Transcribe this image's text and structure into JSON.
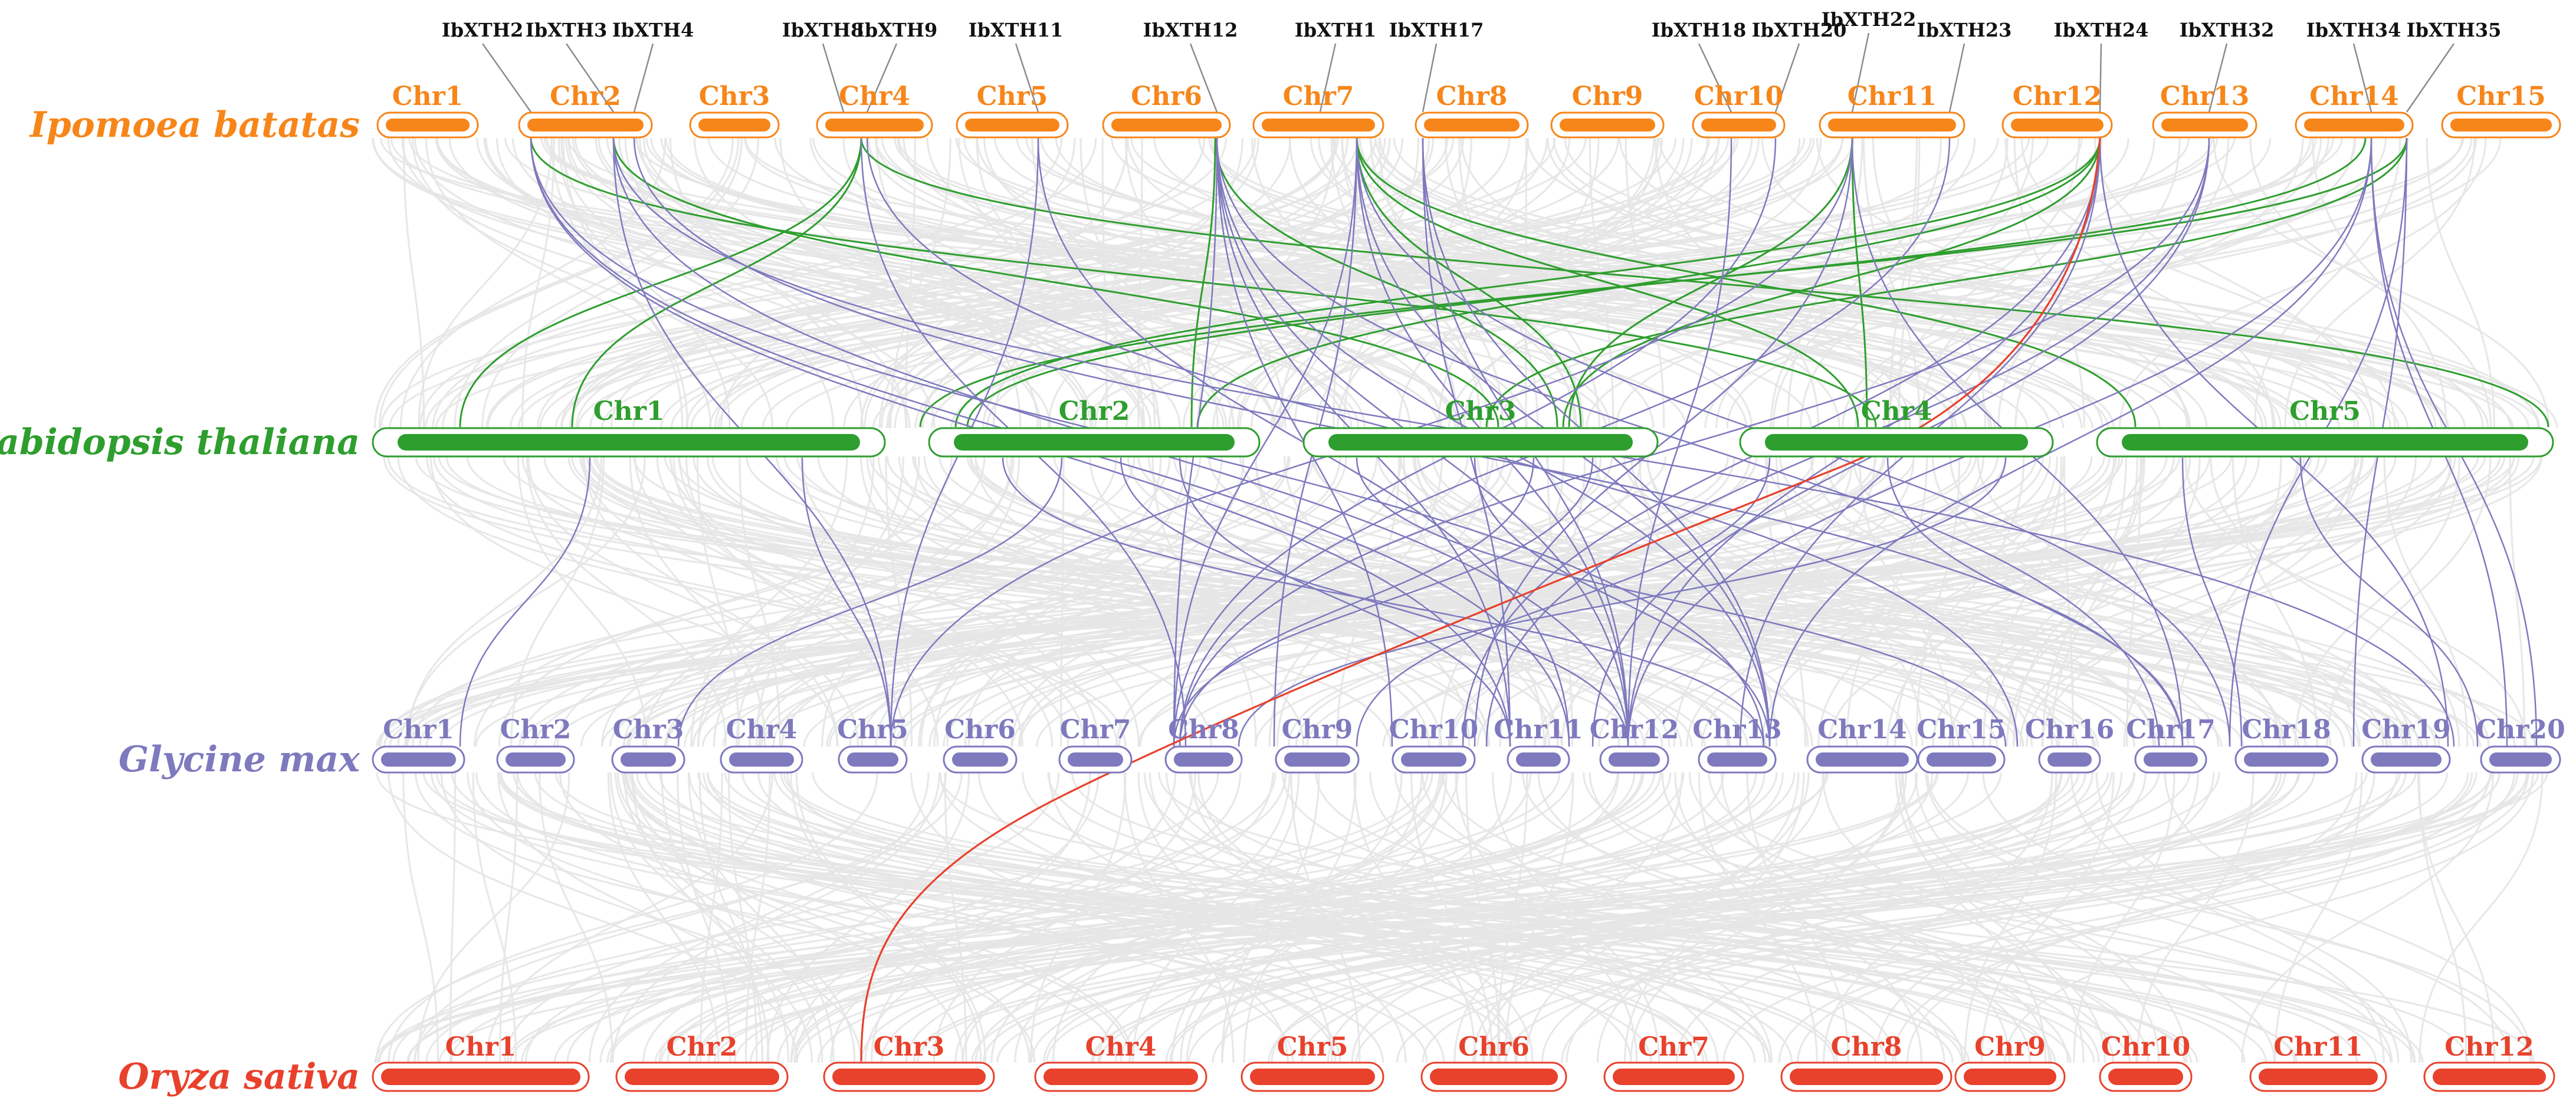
{
  "figure": {
    "colors": {
      "ipomoea": "#F7861A",
      "arabidopsis": "#2E9E2E",
      "glycine": "#7F79BE",
      "oryza": "#E8412C",
      "background_links": "#E6E6E6",
      "gene_leader": "#8C8C8C"
    },
    "tracks": [
      {
        "id": "ib",
        "species": "Ipomoea batatas",
        "chromosomes": [
          "Chr1",
          "Chr2",
          "Chr3",
          "Chr4",
          "Chr5",
          "Chr6",
          "Chr7",
          "Chr8",
          "Chr9",
          "Chr10",
          "Chr11",
          "Chr12",
          "Chr13",
          "Chr14",
          "Chr15"
        ]
      },
      {
        "id": "at",
        "species": "Arabidopsis thaliana",
        "chromosomes": [
          "Chr1",
          "Chr2",
          "Chr3",
          "Chr4",
          "Chr5"
        ]
      },
      {
        "id": "gm",
        "species": "Glycine max",
        "chromosomes": [
          "Chr1",
          "Chr2",
          "Chr3",
          "Chr4",
          "Chr5",
          "Chr6",
          "Chr7",
          "Chr8",
          "Chr9",
          "Chr10",
          "Chr11",
          "Chr12",
          "Chr13",
          "Chr14",
          "Chr15",
          "Chr16",
          "Chr17",
          "Chr18",
          "Chr19",
          "Chr20"
        ]
      },
      {
        "id": "os",
        "species": "Oryza sativa",
        "chromosomes": [
          "Chr1",
          "Chr2",
          "Chr3",
          "Chr4",
          "Chr5",
          "Chr6",
          "Chr7",
          "Chr8",
          "Chr9",
          "Chr10",
          "Chr11",
          "Chr12"
        ]
      }
    ],
    "genes": [
      {
        "name": "IbXTH2",
        "chr": "Chr2"
      },
      {
        "name": "IbXTH3",
        "chr": "Chr2"
      },
      {
        "name": "IbXTH4",
        "chr": "Chr2"
      },
      {
        "name": "IbXTH8",
        "chr": "Chr4"
      },
      {
        "name": "IbXTH9",
        "chr": "Chr4"
      },
      {
        "name": "IbXTH11",
        "chr": "Chr5"
      },
      {
        "name": "IbXTH12",
        "chr": "Chr6"
      },
      {
        "name": "IbXTH1",
        "chr": "Chr7"
      },
      {
        "name": "IbXTH17",
        "chr": "Chr8"
      },
      {
        "name": "IbXTH18",
        "chr": "Chr10"
      },
      {
        "name": "IbXTH20",
        "chr": "Chr11"
      },
      {
        "name": "IbXTH22",
        "chr": "Chr11"
      },
      {
        "name": "IbXTH23",
        "chr": "Chr11"
      },
      {
        "name": "IbXTH24",
        "chr": "Chr12"
      },
      {
        "name": "IbXTH32",
        "chr": "Chr13"
      },
      {
        "name": "IbXTH34",
        "chr": "Chr14"
      },
      {
        "name": "IbXTH35",
        "chr": "Chr14"
      }
    ]
  }
}
